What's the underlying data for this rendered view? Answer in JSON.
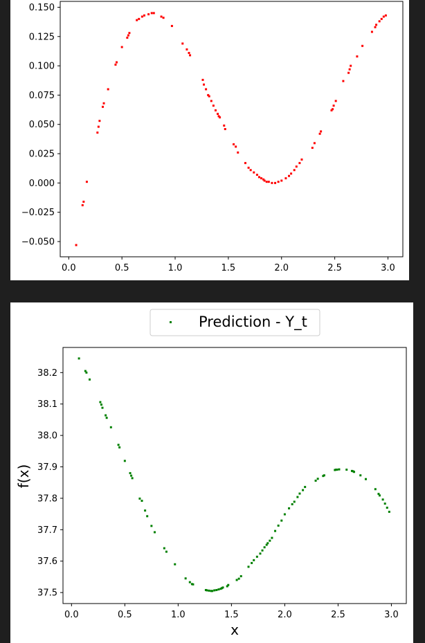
{
  "colors": {
    "background": "#1f1f1f",
    "panel": "#ffffff",
    "series_top": "#ff0000",
    "series_bottom": "#008000"
  },
  "chart_data": [
    {
      "type": "scatter",
      "title": "",
      "xlabel": "",
      "ylabel": "",
      "xlim": [
        -0.08,
        3.14
      ],
      "ylim": [
        -0.063,
        0.155
      ],
      "xticks": [
        "0.0",
        "0.5",
        "1.0",
        "1.5",
        "2.0",
        "2.5",
        "3.0"
      ],
      "yticks": [
        "−0.050",
        "−0.025",
        "0.000",
        "0.025",
        "0.050",
        "0.075",
        "0.100",
        "0.125",
        "0.150"
      ],
      "grid": false,
      "legend": null,
      "series": [
        {
          "color": "#ff0000",
          "x": [
            0.07,
            0.13,
            0.14,
            0.17,
            0.27,
            0.28,
            0.29,
            0.32,
            0.33,
            0.37,
            0.44,
            0.45,
            0.5,
            0.55,
            0.56,
            0.57,
            0.64,
            0.66,
            0.69,
            0.71,
            0.75,
            0.78,
            0.8,
            0.87,
            0.89,
            0.97,
            1.07,
            1.11,
            1.13,
            1.14,
            1.26,
            1.27,
            1.29,
            1.31,
            1.32,
            1.34,
            1.36,
            1.38,
            1.4,
            1.41,
            1.42,
            1.46,
            1.47,
            1.55,
            1.57,
            1.59,
            1.66,
            1.69,
            1.71,
            1.74,
            1.77,
            1.79,
            1.81,
            1.83,
            1.84,
            1.86,
            1.88,
            1.91,
            1.94,
            1.97,
            2.0,
            2.04,
            2.07,
            2.09,
            2.12,
            2.14,
            2.17,
            2.19,
            2.29,
            2.31,
            2.36,
            2.37,
            2.47,
            2.48,
            2.49,
            2.51,
            2.58,
            2.63,
            2.64,
            2.65,
            2.71,
            2.76,
            2.85,
            2.88,
            2.89,
            2.92,
            2.94,
            2.96,
            2.98
          ],
          "y": [
            -0.053,
            -0.019,
            -0.016,
            0.001,
            0.043,
            0.048,
            0.053,
            0.065,
            0.068,
            0.08,
            0.101,
            0.103,
            0.116,
            0.124,
            0.126,
            0.128,
            0.139,
            0.14,
            0.142,
            0.143,
            0.144,
            0.145,
            0.145,
            0.142,
            0.141,
            0.134,
            0.119,
            0.114,
            0.111,
            0.109,
            0.088,
            0.084,
            0.08,
            0.075,
            0.074,
            0.07,
            0.066,
            0.062,
            0.059,
            0.057,
            0.056,
            0.049,
            0.046,
            0.033,
            0.031,
            0.026,
            0.017,
            0.013,
            0.011,
            0.009,
            0.007,
            0.005,
            0.004,
            0.003,
            0.002,
            0.001,
            0.001,
            0.0,
            0.0,
            0.001,
            0.002,
            0.004,
            0.006,
            0.008,
            0.011,
            0.014,
            0.017,
            0.02,
            0.03,
            0.034,
            0.042,
            0.044,
            0.062,
            0.063,
            0.066,
            0.07,
            0.087,
            0.094,
            0.097,
            0.1,
            0.108,
            0.117,
            0.129,
            0.133,
            0.135,
            0.138,
            0.14,
            0.142,
            0.143
          ]
        }
      ]
    },
    {
      "type": "scatter",
      "title": "",
      "xlabel": "x",
      "ylabel": "f(x)",
      "xlim": [
        -0.08,
        3.14
      ],
      "ylim": [
        37.465,
        38.28
      ],
      "xticks": [
        "0.0",
        "0.5",
        "1.0",
        "1.5",
        "2.0",
        "2.5",
        "3.0"
      ],
      "yticks": [
        "37.5",
        "37.6",
        "37.7",
        "37.8",
        "37.9",
        "38.0",
        "38.1",
        "38.2"
      ],
      "grid": false,
      "legend": {
        "placement": "top-center",
        "entries": [
          "Prediction - Y_t"
        ]
      },
      "series": [
        {
          "name": "Prediction - Y_t",
          "color": "#008000",
          "x": [
            0.07,
            0.13,
            0.14,
            0.17,
            0.27,
            0.28,
            0.29,
            0.32,
            0.33,
            0.37,
            0.44,
            0.45,
            0.5,
            0.55,
            0.56,
            0.57,
            0.64,
            0.66,
            0.69,
            0.71,
            0.75,
            0.78,
            0.87,
            0.89,
            0.97,
            1.07,
            1.11,
            1.13,
            1.14,
            1.26,
            1.27,
            1.29,
            1.31,
            1.32,
            1.34,
            1.36,
            1.38,
            1.4,
            1.41,
            1.42,
            1.46,
            1.47,
            1.55,
            1.57,
            1.59,
            1.66,
            1.69,
            1.71,
            1.74,
            1.77,
            1.79,
            1.81,
            1.83,
            1.84,
            1.86,
            1.88,
            1.91,
            1.94,
            1.97,
            2.0,
            2.04,
            2.07,
            2.09,
            2.12,
            2.14,
            2.17,
            2.19,
            2.29,
            2.31,
            2.36,
            2.37,
            2.47,
            2.48,
            2.49,
            2.51,
            2.58,
            2.63,
            2.64,
            2.65,
            2.71,
            2.76,
            2.85,
            2.88,
            2.89,
            2.92,
            2.94,
            2.96,
            2.98
          ],
          "y": [
            38.245,
            38.205,
            38.2,
            38.178,
            38.106,
            38.098,
            38.088,
            38.064,
            38.056,
            38.026,
            37.97,
            37.962,
            37.919,
            37.88,
            37.872,
            37.864,
            37.799,
            37.792,
            37.761,
            37.743,
            37.712,
            37.692,
            37.641,
            37.63,
            37.59,
            37.545,
            37.533,
            37.527,
            37.526,
            37.508,
            37.507,
            37.506,
            37.505,
            37.505,
            37.507,
            37.508,
            37.51,
            37.512,
            37.514,
            37.516,
            37.52,
            37.524,
            37.54,
            37.544,
            37.552,
            37.582,
            37.594,
            37.603,
            37.614,
            37.624,
            37.634,
            37.644,
            37.652,
            37.657,
            37.665,
            37.674,
            37.696,
            37.713,
            37.729,
            37.749,
            37.768,
            37.781,
            37.789,
            37.804,
            37.815,
            37.826,
            37.836,
            37.856,
            37.862,
            37.871,
            37.873,
            37.89,
            37.891,
            37.891,
            37.892,
            37.891,
            37.887,
            37.886,
            37.884,
            37.873,
            37.861,
            37.829,
            37.814,
            37.809,
            37.796,
            37.783,
            37.77,
            37.757
          ]
        }
      ]
    }
  ]
}
